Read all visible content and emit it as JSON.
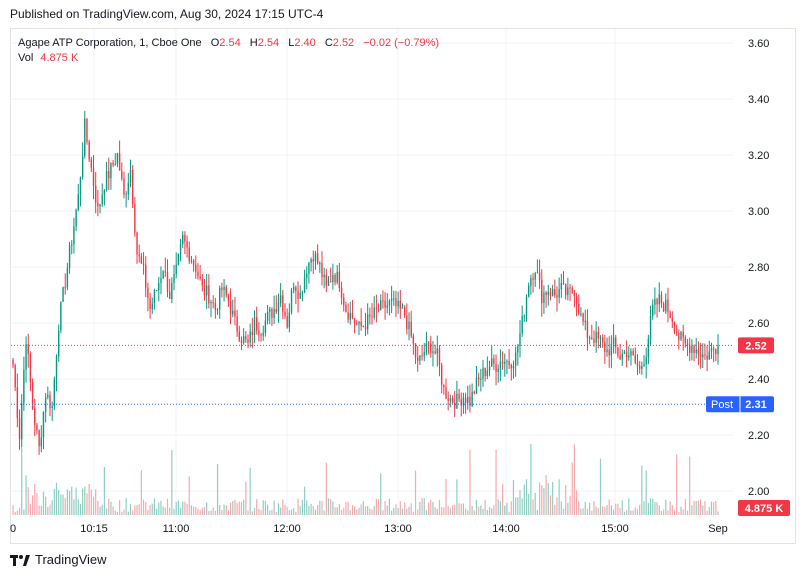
{
  "published": "Published on TradingView.com, Aug 30, 2024 17:15 UTC-4",
  "legend": {
    "symbol": "Agape ATP Corporation, 1, Cboe One",
    "o_label": "O",
    "o_value": "2.54",
    "h_label": "H",
    "h_value": "2.54",
    "l_label": "L",
    "l_value": "2.40",
    "c_label": "C",
    "c_value": "2.52",
    "change": "−0.02 (−0.79%)",
    "vol_label": "Vol",
    "vol_value": "4.875 K"
  },
  "footer": {
    "brand": "TradingView"
  },
  "colors": {
    "up": "#089981",
    "down": "#f23645",
    "up_vol": "#8fcfc3",
    "down_vol": "#f7a9ae",
    "post_line": "#2962ff",
    "grid": "#f0f3fa",
    "axis_text": "#131722"
  },
  "chart_data": {
    "type": "candlestick",
    "price_axis": {
      "min": 2.0,
      "max": 3.6,
      "ticks": [
        "3.60",
        "3.40",
        "3.20",
        "3.00",
        "2.80",
        "2.60",
        "2.40",
        "2.20",
        "2.00"
      ]
    },
    "time_axis": {
      "labels": [
        "0",
        "10:15",
        "11:00",
        "12:00",
        "13:00",
        "14:00",
        "15:00",
        "Sep"
      ]
    },
    "last_price": {
      "value": 2.52,
      "label": "2.52"
    },
    "post_price": {
      "value": 2.31,
      "label": "2.31",
      "tag": "Post"
    },
    "volume_label": "4.875 K",
    "anchors": [
      [
        0,
        2.45
      ],
      [
        3,
        2.2
      ],
      [
        6,
        2.55
      ],
      [
        9,
        2.3
      ],
      [
        12,
        2.15
      ],
      [
        15,
        2.35
      ],
      [
        18,
        2.3
      ],
      [
        21,
        2.6
      ],
      [
        24,
        2.75
      ],
      [
        27,
        2.9
      ],
      [
        30,
        3.05
      ],
      [
        33,
        3.3
      ],
      [
        36,
        3.15
      ],
      [
        39,
        3.0
      ],
      [
        42,
        3.1
      ],
      [
        45,
        3.15
      ],
      [
        48,
        3.2
      ],
      [
        51,
        3.05
      ],
      [
        54,
        3.15
      ],
      [
        57,
        2.85
      ],
      [
        60,
        2.78
      ],
      [
        63,
        2.65
      ],
      [
        66,
        2.72
      ],
      [
        69,
        2.8
      ],
      [
        72,
        2.7
      ],
      [
        75,
        2.78
      ],
      [
        78,
        2.9
      ],
      [
        81,
        2.85
      ],
      [
        84,
        2.8
      ],
      [
        87,
        2.72
      ],
      [
        90,
        2.7
      ],
      [
        93,
        2.65
      ],
      [
        96,
        2.72
      ],
      [
        99,
        2.68
      ],
      [
        102,
        2.6
      ],
      [
        105,
        2.55
      ],
      [
        108,
        2.52
      ],
      [
        111,
        2.6
      ],
      [
        114,
        2.58
      ],
      [
        117,
        2.62
      ],
      [
        120,
        2.65
      ],
      [
        123,
        2.7
      ],
      [
        126,
        2.6
      ],
      [
        129,
        2.75
      ],
      [
        132,
        2.7
      ],
      [
        135,
        2.8
      ],
      [
        138,
        2.85
      ],
      [
        141,
        2.8
      ],
      [
        144,
        2.72
      ],
      [
        147,
        2.78
      ],
      [
        150,
        2.75
      ],
      [
        153,
        2.65
      ],
      [
        156,
        2.62
      ],
      [
        159,
        2.58
      ],
      [
        162,
        2.6
      ],
      [
        165,
        2.62
      ],
      [
        168,
        2.65
      ],
      [
        171,
        2.66
      ],
      [
        174,
        2.67
      ],
      [
        177,
        2.65
      ],
      [
        180,
        2.63
      ],
      [
        183,
        2.55
      ],
      [
        186,
        2.45
      ],
      [
        189,
        2.5
      ],
      [
        192,
        2.52
      ],
      [
        195,
        2.48
      ],
      [
        198,
        2.36
      ],
      [
        201,
        2.33
      ],
      [
        204,
        2.32
      ],
      [
        207,
        2.34
      ],
      [
        210,
        2.32
      ],
      [
        213,
        2.38
      ],
      [
        216,
        2.42
      ],
      [
        219,
        2.45
      ],
      [
        222,
        2.45
      ],
      [
        225,
        2.47
      ],
      [
        228,
        2.46
      ],
      [
        231,
        2.48
      ],
      [
        234,
        2.6
      ],
      [
        237,
        2.75
      ],
      [
        240,
        2.8
      ],
      [
        243,
        2.7
      ],
      [
        246,
        2.72
      ],
      [
        249,
        2.7
      ],
      [
        252,
        2.72
      ],
      [
        255,
        2.7
      ],
      [
        258,
        2.72
      ],
      [
        261,
        2.62
      ],
      [
        264,
        2.56
      ],
      [
        267,
        2.55
      ],
      [
        270,
        2.53
      ],
      [
        273,
        2.5
      ],
      [
        276,
        2.52
      ],
      [
        279,
        2.48
      ],
      [
        282,
        2.5
      ],
      [
        285,
        2.47
      ],
      [
        288,
        2.43
      ],
      [
        291,
        2.5
      ],
      [
        294,
        2.65
      ],
      [
        297,
        2.68
      ],
      [
        300,
        2.66
      ],
      [
        303,
        2.62
      ],
      [
        306,
        2.55
      ],
      [
        309,
        2.52
      ],
      [
        312,
        2.52
      ],
      [
        315,
        2.5
      ],
      [
        318,
        2.48
      ],
      [
        321,
        2.5
      ],
      [
        324,
        2.52
      ]
    ],
    "bar_count": 325
  }
}
